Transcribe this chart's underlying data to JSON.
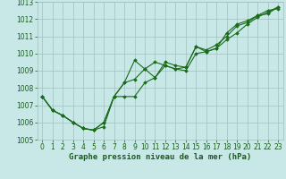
{
  "xlabel": "Graphe pression niveau de la mer (hPa)",
  "xlim": [
    -0.5,
    23.5
  ],
  "ylim": [
    1005,
    1013
  ],
  "yticks": [
    1005,
    1006,
    1007,
    1008,
    1009,
    1010,
    1011,
    1012,
    1013
  ],
  "xticks": [
    0,
    1,
    2,
    3,
    4,
    5,
    6,
    7,
    8,
    9,
    10,
    11,
    12,
    13,
    14,
    15,
    16,
    17,
    18,
    19,
    20,
    21,
    22,
    23
  ],
  "bg_color": "#c8e8e8",
  "grid_color": "#a0c0c0",
  "line_color": "#1a6b1a",
  "series": [
    [
      1007.5,
      1006.7,
      1006.4,
      1006.0,
      1005.65,
      1005.55,
      1005.75,
      1007.5,
      1008.3,
      1009.6,
      1009.1,
      1008.6,
      1009.5,
      1009.3,
      1009.2,
      1010.4,
      1010.1,
      1010.3,
      1010.8,
      1011.2,
      1011.7,
      1012.1,
      1012.4,
      1012.7
    ],
    [
      1007.5,
      1006.7,
      1006.4,
      1006.0,
      1005.65,
      1005.55,
      1006.0,
      1007.5,
      1008.3,
      1008.5,
      1009.1,
      1009.5,
      1009.3,
      1009.1,
      1009.2,
      1010.4,
      1010.2,
      1010.5,
      1011.0,
      1011.6,
      1011.8,
      1012.2,
      1012.3,
      1012.7
    ],
    [
      1007.5,
      1006.7,
      1006.4,
      1006.0,
      1005.65,
      1005.55,
      1006.0,
      1007.5,
      1007.5,
      1007.5,
      1008.3,
      1008.6,
      1009.3,
      1009.1,
      1009.0,
      1010.0,
      1010.1,
      1010.3,
      1011.2,
      1011.7,
      1011.9,
      1012.2,
      1012.5,
      1012.6
    ]
  ],
  "marker": "D",
  "marker_size": 1.8,
  "line_width": 0.8,
  "font_color": "#1a5c1a",
  "xlabel_fontsize": 6.5,
  "tick_fontsize": 5.5
}
